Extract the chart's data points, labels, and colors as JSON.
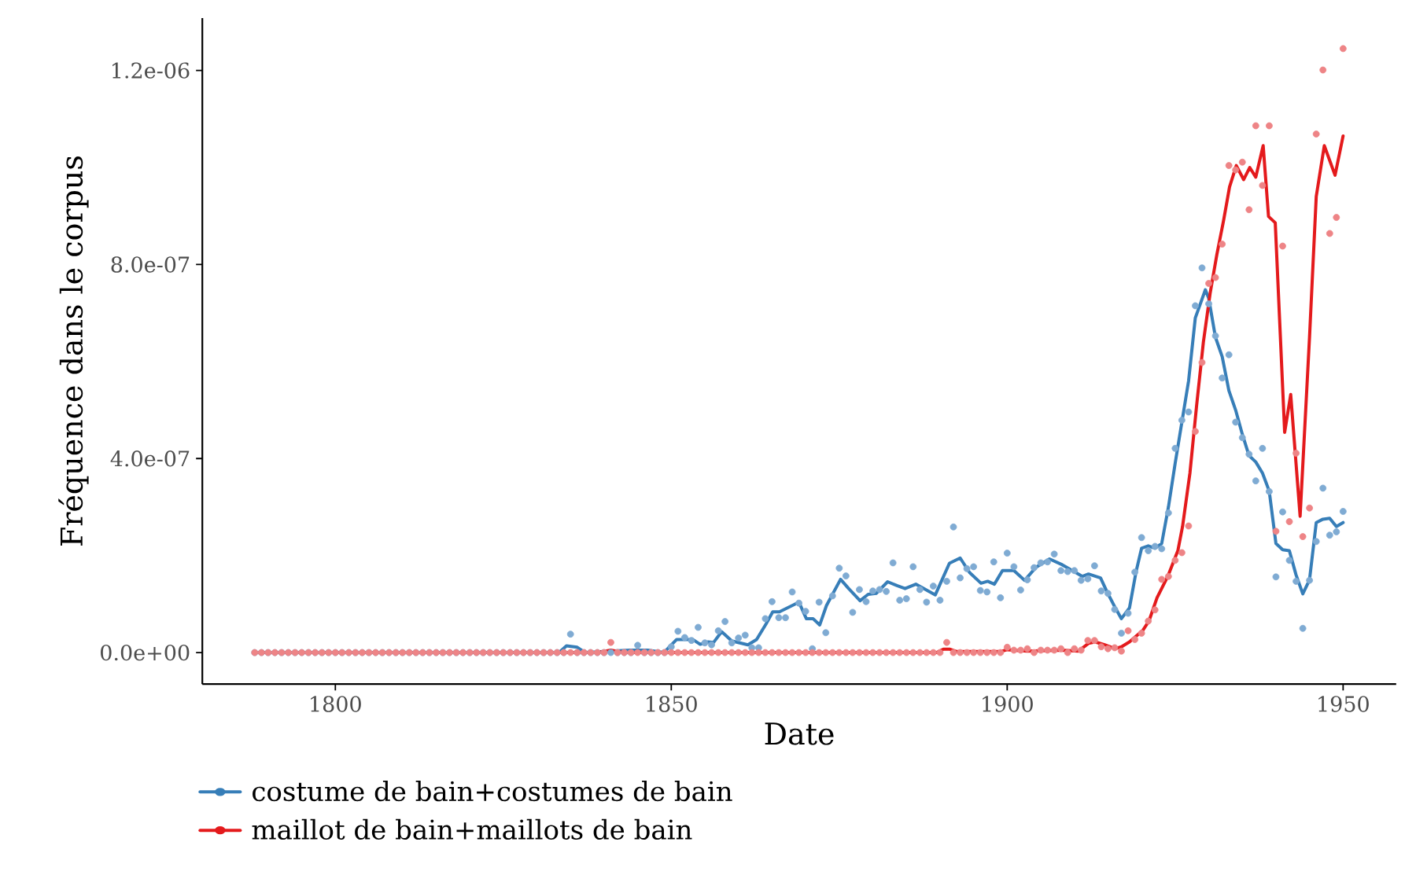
{
  "chart_data": {
    "type": "line",
    "xlabel": "Date",
    "ylabel": "Fréquence dans le corpus",
    "x": [
      1788,
      1789,
      1790,
      1791,
      1792,
      1793,
      1794,
      1795,
      1796,
      1797,
      1798,
      1799,
      1800,
      1801,
      1802,
      1803,
      1804,
      1805,
      1806,
      1807,
      1808,
      1809,
      1810,
      1811,
      1812,
      1813,
      1814,
      1815,
      1816,
      1817,
      1818,
      1819,
      1820,
      1821,
      1822,
      1823,
      1824,
      1825,
      1826,
      1827,
      1828,
      1829,
      1830,
      1831,
      1832,
      1833,
      1834,
      1835,
      1836,
      1837,
      1838,
      1839,
      1840,
      1841,
      1842,
      1843,
      1844,
      1845,
      1846,
      1847,
      1848,
      1849,
      1850,
      1851,
      1852,
      1853,
      1854,
      1855,
      1856,
      1857,
      1858,
      1859,
      1860,
      1861,
      1862,
      1863,
      1864,
      1865,
      1866,
      1867,
      1868,
      1869,
      1870,
      1871,
      1872,
      1873,
      1874,
      1875,
      1876,
      1877,
      1878,
      1879,
      1880,
      1881,
      1882,
      1883,
      1884,
      1885,
      1886,
      1887,
      1888,
      1889,
      1890,
      1891,
      1892,
      1893,
      1894,
      1895,
      1896,
      1897,
      1898,
      1899,
      1900,
      1901,
      1902,
      1903,
      1904,
      1905,
      1906,
      1907,
      1908,
      1909,
      1910,
      1911,
      1912,
      1913,
      1914,
      1915,
      1916,
      1917,
      1918,
      1919,
      1920,
      1921,
      1922,
      1923,
      1924,
      1925,
      1926,
      1927,
      1928,
      1929,
      1930,
      1931,
      1932,
      1933,
      1934,
      1935,
      1936,
      1937,
      1938,
      1939,
      1940,
      1941,
      1942,
      1943,
      1944,
      1945,
      1946,
      1947,
      1948,
      1949,
      1950
    ],
    "series": [
      {
        "type": "scatter",
        "marker": "circle",
        "color": "#7fabd3",
        "values": [
          0,
          0,
          0,
          0,
          0,
          0,
          0,
          0,
          0,
          0,
          0,
          0,
          0,
          0,
          0,
          0,
          0,
          0,
          0,
          0,
          0,
          0,
          0,
          0,
          0,
          0,
          0,
          0,
          0,
          0,
          0,
          0,
          0,
          0,
          0,
          0,
          0,
          0,
          0,
          0,
          0,
          0,
          0,
          0,
          0,
          0,
          0,
          3.8e-08,
          0,
          0,
          0,
          0,
          0,
          0,
          0,
          0,
          0,
          1.5e-08,
          0,
          0,
          0,
          0,
          1.2e-08,
          4.4e-08,
          3.1e-08,
          2.5e-08,
          5.2e-08,
          2e-08,
          1.6e-08,
          4.5e-08,
          6.4e-08,
          2e-08,
          3e-08,
          3.6e-08,
          1e-08,
          1e-08,
          7e-08,
          1.05e-07,
          7.2e-08,
          7.2e-08,
          1.25e-07,
          1.02e-07,
          8.5e-08,
          8e-09,
          1.04e-07,
          4.1e-08,
          1.17e-07,
          1.74e-07,
          1.58e-07,
          8.3e-08,
          1.3e-07,
          1.05e-07,
          1.27e-07,
          1.3e-07,
          1.26e-07,
          1.85e-07,
          1.08e-07,
          1.11e-07,
          1.77e-07,
          1.3e-07,
          1.04e-07,
          1.37e-07,
          1.08e-07,
          1.47e-07,
          2.59e-07,
          1.54e-07,
          1.73e-07,
          1.77e-07,
          1.28e-07,
          1.25e-07,
          1.87e-07,
          1.13e-07,
          2.05e-07,
          1.77e-07,
          1.29e-07,
          1.5e-07,
          1.75e-07,
          1.85e-07,
          1.87e-07,
          2.03e-07,
          1.69e-07,
          1.67e-07,
          1.69e-07,
          1.49e-07,
          1.52e-07,
          1.79e-07,
          1.27e-07,
          1.22e-07,
          8.9e-08,
          4e-08,
          8.1e-08,
          1.66e-07,
          2.37e-07,
          2.1e-07,
          2.19e-07,
          2.14e-07,
          2.88e-07,
          4.21e-07,
          4.79e-07,
          4.96e-07,
          7.15e-07,
          7.93e-07,
          7.19e-07,
          6.53e-07,
          5.66e-07,
          6.14e-07,
          4.75e-07,
          4.43e-07,
          4.09e-07,
          3.54e-07,
          4.21e-07,
          3.32e-07,
          1.56e-07,
          2.9e-07,
          1.9e-07,
          1.47e-07,
          5e-08,
          1.49e-07,
          2.29e-07,
          3.39e-07,
          2.42e-07,
          2.49e-07,
          2.91e-07
        ]
      },
      {
        "type": "scatter",
        "marker": "circle",
        "color": "#ee8486",
        "values": [
          0,
          0,
          0,
          0,
          0,
          0,
          0,
          0,
          0,
          0,
          0,
          0,
          0,
          0,
          0,
          0,
          0,
          0,
          0,
          0,
          0,
          0,
          0,
          0,
          0,
          0,
          0,
          0,
          0,
          0,
          0,
          0,
          0,
          0,
          0,
          0,
          0,
          0,
          0,
          0,
          0,
          0,
          0,
          0,
          0,
          0,
          0,
          0,
          0,
          0,
          0,
          0,
          0,
          2.1e-08,
          0,
          0,
          0,
          0,
          0,
          0,
          0,
          0,
          0,
          0,
          0,
          0,
          0,
          0,
          0,
          0,
          0,
          0,
          0,
          0,
          0,
          0,
          0,
          0,
          0,
          0,
          0,
          0,
          0,
          0,
          0,
          0,
          0,
          0,
          0,
          0,
          0,
          0,
          0,
          0,
          0,
          0,
          0,
          0,
          0,
          0,
          0,
          0,
          0,
          2.1e-08,
          0,
          0,
          0,
          0,
          0,
          0,
          0,
          0,
          1.1e-08,
          5e-09,
          5e-09,
          8e-09,
          0,
          5e-09,
          5e-09,
          5e-09,
          8e-09,
          0,
          8e-09,
          5e-09,
          2.5e-08,
          2.5e-08,
          1.2e-08,
          8e-09,
          1e-08,
          3e-09,
          4.5e-08,
          2.7e-08,
          4e-08,
          6.5e-08,
          8.8e-08,
          1.51e-07,
          1.57e-07,
          1.9e-07,
          2.06e-07,
          2.61e-07,
          4.56e-07,
          5.98e-07,
          7.61e-07,
          7.73e-07,
          8.42e-07,
          1.004e-06,
          9.95e-07,
          1.011e-06,
          9.13e-07,
          1.086e-06,
          9.63e-07,
          1.086e-06,
          2.5e-07,
          8.38e-07,
          2.7e-07,
          4.11e-07,
          2.39e-07,
          2.98e-07,
          1.069e-06,
          1.201e-06,
          8.64e-07,
          8.97e-07,
          1.245e-06
        ]
      },
      {
        "marker": "none",
        "name": "costume de bain+costumes de bain",
        "color": "#377eb8",
        "x": [
          1788,
          1833.3,
          1834.4,
          1836,
          1837.2,
          1843.8,
          1846.5,
          1848.9,
          1850.8,
          1853.2,
          1854.3,
          1855.5,
          1856.3,
          1857.5,
          1859,
          1861.4,
          1862.7,
          1864.1,
          1865.1,
          1866.1,
          1869,
          1870.1,
          1871.1,
          1872.1,
          1873.1,
          1875.2,
          1876.4,
          1878.1,
          1879.3,
          1880.5,
          1882.2,
          1883.6,
          1884.8,
          1886.4,
          1889.3,
          1891.4,
          1893,
          1894.4,
          1896.1,
          1897.1,
          1898.1,
          1899.3,
          1901,
          1902.6,
          1904.3,
          1906.3,
          1908.2,
          1910.2,
          1911.2,
          1912.1,
          1913.9,
          1914.9,
          1916.1,
          1917,
          1918.2,
          1919.2,
          1920,
          1921,
          1922,
          1923,
          1924,
          1925,
          1926,
          1927,
          1928,
          1929.5,
          1930,
          1931,
          1932,
          1933,
          1934,
          1935,
          1936,
          1937,
          1938,
          1939,
          1940,
          1941,
          1942,
          1943,
          1944,
          1945,
          1946,
          1947,
          1948,
          1949,
          1950
        ],
        "values": [
          0,
          0,
          1.4e-08,
          1.1e-08,
          0,
          5e-09,
          5e-09,
          0,
          2.7e-08,
          2.7e-08,
          1.7e-08,
          2.2e-08,
          2.1e-08,
          4.3e-08,
          2.4e-08,
          1.6e-08,
          2.7e-08,
          5.9e-08,
          8.4e-08,
          8.4e-08,
          1.04e-07,
          7e-08,
          7e-08,
          5.7e-08,
          9.7e-08,
          1.51e-07,
          1.32e-07,
          1.07e-07,
          1.2e-07,
          1.22e-07,
          1.46e-07,
          1.38e-07,
          1.32e-07,
          1.41e-07,
          1.19e-07,
          1.84e-07,
          1.95e-07,
          1.65e-07,
          1.43e-07,
          1.47e-07,
          1.41e-07,
          1.69e-07,
          1.69e-07,
          1.49e-07,
          1.76e-07,
          1.93e-07,
          1.81e-07,
          1.65e-07,
          1.57e-07,
          1.62e-07,
          1.54e-07,
          1.24e-07,
          9.2e-08,
          7e-08,
          9.2e-08,
          1.68e-07,
          2.15e-07,
          2.2e-07,
          2.15e-07,
          2.25e-07,
          3e-07,
          3.9e-07,
          4.75e-07,
          5.6e-07,
          6.9e-07,
          7.48e-07,
          7.3e-07,
          6.5e-07,
          6.1e-07,
          5.4e-07,
          5e-07,
          4.5e-07,
          4.06e-07,
          3.93e-07,
          3.7e-07,
          3.33e-07,
          2.25e-07,
          2.12e-07,
          2.1e-07,
          1.6e-07,
          1.21e-07,
          1.5e-07,
          2.68e-07,
          2.75e-07,
          2.77e-07,
          2.6e-07,
          2.68e-07
        ]
      },
      {
        "marker": "none",
        "name": "maillot de bain+maillots de bain",
        "color": "#e41a1c",
        "x": [
          1788,
          1839,
          1841,
          1843,
          1889.5,
          1890.5,
          1891.5,
          1892.5,
          1899,
          1900,
          1903,
          1908,
          1910.6,
          1912.1,
          1913.1,
          1914.5,
          1916.1,
          1917,
          1918.2,
          1920.2,
          1921.1,
          1922.3,
          1923.9,
          1925.4,
          1926.1,
          1927.2,
          1928.2,
          1929.2,
          1930.2,
          1931.2,
          1932.2,
          1933.1,
          1934.1,
          1935.2,
          1936.1,
          1937,
          1938.1,
          1938.9,
          1939.9,
          1941.3,
          1942.2,
          1943.6,
          1945,
          1946,
          1947.2,
          1948.8,
          1950
        ],
        "values": [
          0,
          0,
          5e-09,
          0,
          0,
          7e-09,
          7e-09,
          2e-09,
          2e-09,
          6e-09,
          3e-09,
          5e-09,
          3e-09,
          1.9e-08,
          2.2e-08,
          1.6e-08,
          8e-09,
          1.2e-08,
          2.2e-08,
          4.6e-08,
          6.5e-08,
          1.13e-07,
          1.57e-07,
          2.1e-07,
          2.6e-07,
          3.7e-07,
          5.1e-07,
          6.4e-07,
          7.4e-07,
          8.2e-07,
          8.9e-07,
          9.6e-07,
          1.004e-06,
          9.75e-07,
          1e-06,
          9.8e-07,
          1.045e-06,
          8.99e-07,
          8.86e-07,
          4.54e-07,
          5.32e-07,
          2.81e-07,
          6.5e-07,
          9.4e-07,
          1.045e-06,
          9.84e-07,
          1.065e-06
        ]
      }
    ],
    "xlim": [
      1780.2,
      1957.9
    ],
    "ylim": [
      -6.5e-08,
      1.308e-06
    ],
    "xticks": [
      1800,
      1850,
      1900,
      1950
    ],
    "yticks": [
      {
        "value": 0,
        "label": "0.0e+00"
      },
      {
        "value": 4e-07,
        "label": "4.0e-07"
      },
      {
        "value": 8e-07,
        "label": "8.0e-07"
      },
      {
        "value": 1.2e-06,
        "label": "1.2e-06"
      }
    ],
    "legend": "bottom"
  }
}
